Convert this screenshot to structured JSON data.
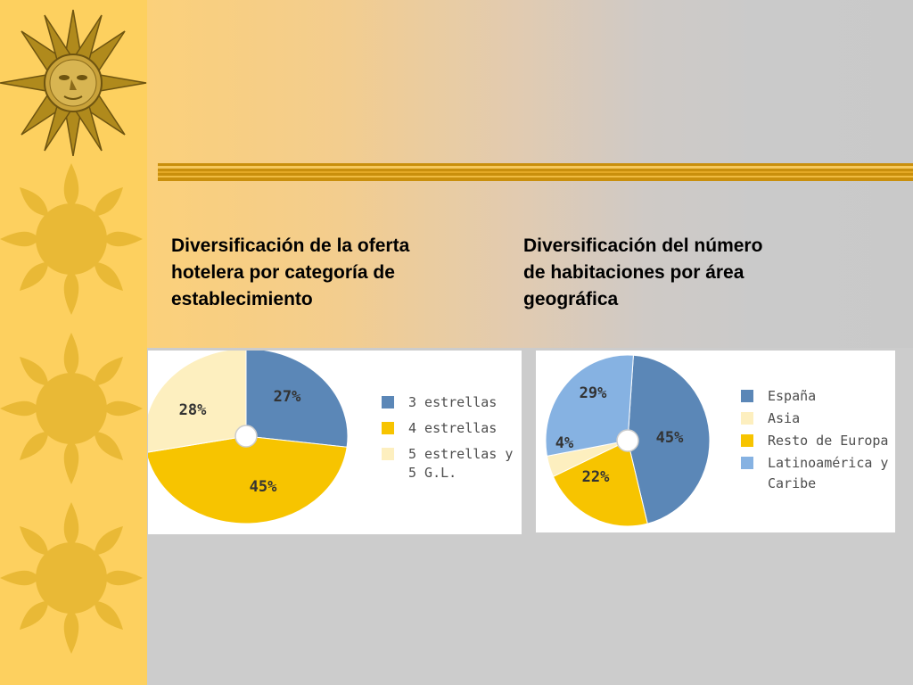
{
  "slide": {
    "caption_left": "Diversificación de la oferta\nhotelera por categoría de\nestablecimiento",
    "caption_right": "Diversificación del número\nde habitaciones por área\ngeográfica"
  },
  "colors": {
    "sidebar": "#fdd05f",
    "sun_gold": "#e9b936",
    "rule": "#c98f0c"
  },
  "chart_data": [
    {
      "type": "pie",
      "title": "Diversificación de la oferta hotelera por categoría de establecimiento",
      "slices": [
        {
          "label": "3 estrellas",
          "value": 27,
          "text": "27%",
          "color": "#5b87b7"
        },
        {
          "label": "4 estrellas",
          "value": 45,
          "text": "45%",
          "color": "#f7c400"
        },
        {
          "label": "5 estrellas y 5 G.L.",
          "value": 28,
          "text": "28%",
          "color": "#fdefbf"
        }
      ],
      "legend": [
        {
          "lines": [
            "3 estrellas"
          ],
          "color": "#5b87b7"
        },
        {
          "lines": [
            "4 estrellas"
          ],
          "color": "#f7c400"
        },
        {
          "lines": [
            "5 estrellas y",
            "5 G.L."
          ],
          "color": "#fdefbf"
        }
      ],
      "legend_position": "right"
    },
    {
      "type": "pie",
      "title": "Diversificación del número de habitaciones por área geográfica",
      "slices": [
        {
          "label": "España",
          "value": 45,
          "text": "45%",
          "color": "#5b87b7"
        },
        {
          "label": "Resto de Europa",
          "value": 22,
          "text": "22%",
          "color": "#f7c400"
        },
        {
          "label": "Asia",
          "value": 4,
          "text": "4%",
          "color": "#fdefbf"
        },
        {
          "label": "Latinoamérica y Caribe",
          "value": 29,
          "text": "29%",
          "color": "#86b2e2"
        }
      ],
      "legend": [
        {
          "lines": [
            "España"
          ],
          "color": "#5b87b7"
        },
        {
          "lines": [
            "Asia"
          ],
          "color": "#fdefbf"
        },
        {
          "lines": [
            "Resto de Europa"
          ],
          "color": "#f7c400"
        },
        {
          "lines": [
            "Latinoamérica y",
            "Caribe"
          ],
          "color": "#86b2e2"
        }
      ],
      "legend_position": "right"
    }
  ]
}
